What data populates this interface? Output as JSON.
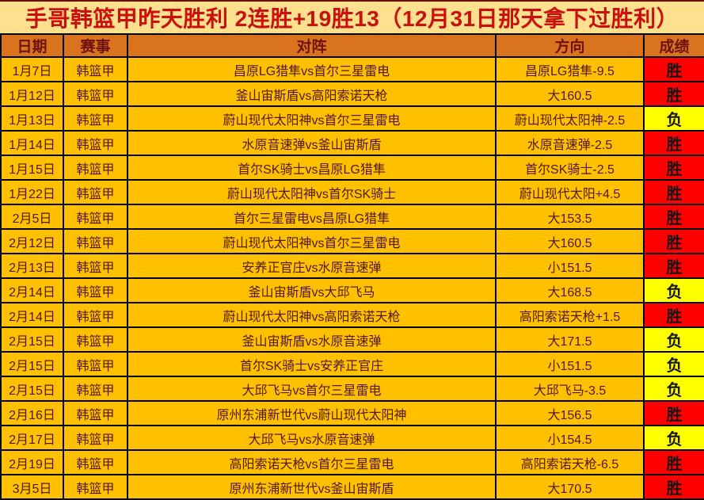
{
  "title": "手哥韩篮甲昨天胜利 2连胜+19胜13（12月31日那天拿下过胜利）",
  "legend": {
    "win": "胜",
    "loss": "负"
  },
  "colors": {
    "title_bg": "#FFE08F",
    "title_text": "#C9100C",
    "header_bg": "#D9731D",
    "header_text": "#6E130B",
    "row_bg": "#FFC000",
    "row_text": "#53180B",
    "win_bg": "#FF0000",
    "loss_bg": "#FFFF00",
    "result_text": "#151515",
    "border": "#000000",
    "outer_edge": "#6B0F0B"
  },
  "table": {
    "headers": [
      "日期",
      "赛事",
      "对阵",
      "方向",
      "成绩"
    ],
    "rows": [
      {
        "date": "1月7日",
        "league": "韩篮甲",
        "match": "昌原LG猎隼vs首尔三星雷电",
        "direction": "昌原LG猎隼-9.5",
        "result": "胜"
      },
      {
        "date": "1月12日",
        "league": "韩篮甲",
        "match": "釜山宙斯盾vs高阳索诺天枪",
        "direction": "大160.5",
        "result": "胜"
      },
      {
        "date": "1月13日",
        "league": "韩篮甲",
        "match": "蔚山现代太阳神vs首尔三星雷电",
        "direction": "蔚山现代太阳神-2.5",
        "result": "负"
      },
      {
        "date": "1月14日",
        "league": "韩篮甲",
        "match": "水原音速弹vs釜山宙斯盾",
        "direction": "水原音速弹-2.5",
        "result": "胜"
      },
      {
        "date": "1月15日",
        "league": "韩篮甲",
        "match": "首尔SK骑士vs昌原LG猎隼",
        "direction": "首尔SK骑士-2.5",
        "result": "胜"
      },
      {
        "date": "1月22日",
        "league": "韩篮甲",
        "match": "蔚山现代太阳神vs首尔SK骑士",
        "direction": "蔚山现代太阳+4.5",
        "result": "胜"
      },
      {
        "date": "2月5日",
        "league": "韩篮甲",
        "match": "首尔三星雷电vs昌原LG猎隼",
        "direction": "大153.5",
        "result": "胜"
      },
      {
        "date": "2月12日",
        "league": "韩篮甲",
        "match": "蔚山现代太阳神vs首尔三星雷电",
        "direction": "大160.5",
        "result": "胜"
      },
      {
        "date": "2月13日",
        "league": "韩篮甲",
        "match": "安养正官庄vs水原音速弹",
        "direction": "小151.5",
        "result": "胜"
      },
      {
        "date": "2月14日",
        "league": "韩篮甲",
        "match": "釜山宙斯盾vs大邱飞马",
        "direction": "大168.5",
        "result": "负"
      },
      {
        "date": "2月14日",
        "league": "韩篮甲",
        "match": "蔚山现代太阳神vs高阳索诺天枪",
        "direction": "高阳索诺天枪+1.5",
        "result": "胜"
      },
      {
        "date": "2月15日",
        "league": "韩篮甲",
        "match": "釜山宙斯盾vs水原音速弹",
        "direction": "大171.5",
        "result": "负"
      },
      {
        "date": "2月15日",
        "league": "韩篮甲",
        "match": "首尔SK骑士vs安养正官庄",
        "direction": "小151.5",
        "result": "负"
      },
      {
        "date": "2月15日",
        "league": "韩篮甲",
        "match": "大邱飞马vs首尔三星雷电",
        "direction": "大邱飞马-3.5",
        "result": "负"
      },
      {
        "date": "2月16日",
        "league": "韩篮甲",
        "match": "原州东浦新世代vs蔚山现代太阳神",
        "direction": "大156.5",
        "result": "胜"
      },
      {
        "date": "2月17日",
        "league": "韩篮甲",
        "match": "大邱飞马vs水原音速弹",
        "direction": "小154.5",
        "result": "负"
      },
      {
        "date": "2月19日",
        "league": "韩篮甲",
        "match": "高阳索诺天枪vs首尔三星雷电",
        "direction": "高阳索诺天枪-6.5",
        "result": "胜"
      },
      {
        "date": "3月5日",
        "league": "韩篮甲",
        "match": "原州东浦新世代vs釜山宙斯盾",
        "direction": "大170.5",
        "result": "胜"
      }
    ]
  }
}
